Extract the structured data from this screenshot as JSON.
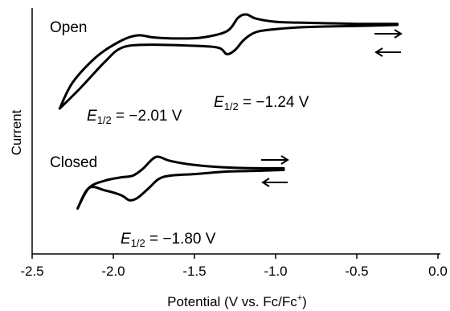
{
  "chart_data": {
    "type": "line",
    "xlabel": "Potential (V vs. Fc/Fc⁺)",
    "xlabel_main": "Potential (V vs. Fc/Fc",
    "xlabel_sup": "+",
    "xlabel_end": ")",
    "ylabel": "Current",
    "xlim": [
      -2.5,
      0.0
    ],
    "xticks": [
      "-2.5",
      "-2.0",
      "-1.5",
      "-1.0",
      "-0.5",
      "0.0"
    ],
    "grid": false,
    "series": [
      {
        "name": "Open",
        "e_half_label": "E1/2 = −2.01 V",
        "e_half_label2": "E1/2 = −1.24 V",
        "forward_x": [
          -0.25,
          -0.5,
          -0.8,
          -1.0,
          -1.1,
          -1.15,
          -1.2,
          -1.25,
          -1.3,
          -1.35,
          -1.5,
          -1.8,
          -1.95,
          -2.05,
          -2.2,
          -2.33
        ],
        "forward_y": [
          0.9,
          0.89,
          0.88,
          0.86,
          0.84,
          0.81,
          0.75,
          0.66,
          0.62,
          0.68,
          0.7,
          0.71,
          0.68,
          0.55,
          0.3,
          0.1
        ],
        "reverse_x": [
          -2.33,
          -2.25,
          -2.1,
          -1.95,
          -1.85,
          -1.75,
          -1.6,
          -1.45,
          -1.3,
          -1.23,
          -1.18,
          -1.12,
          -1.0,
          -0.8,
          -0.5,
          -0.25
        ],
        "reverse_y": [
          0.1,
          0.35,
          0.6,
          0.75,
          0.8,
          0.78,
          0.77,
          0.78,
          0.84,
          0.97,
          1.0,
          0.96,
          0.93,
          0.92,
          0.91,
          0.91
        ]
      },
      {
        "name": "Closed",
        "e_half_label": "E1/2 = −1.80 V",
        "forward_x": [
          -0.95,
          -1.1,
          -1.3,
          -1.5,
          -1.65,
          -1.72,
          -1.78,
          -1.85,
          -1.9,
          -1.95,
          -2.05,
          -2.15,
          -2.22
        ],
        "forward_y": [
          0.77,
          0.76,
          0.75,
          0.72,
          0.7,
          0.66,
          0.55,
          0.43,
          0.4,
          0.46,
          0.52,
          0.55,
          0.3
        ],
        "reverse_x": [
          -2.22,
          -2.15,
          -2.05,
          -1.95,
          -1.88,
          -1.82,
          -1.76,
          -1.72,
          -1.65,
          -1.5,
          -1.3,
          -1.1,
          -0.95
        ],
        "reverse_y": [
          0.3,
          0.55,
          0.64,
          0.68,
          0.7,
          0.78,
          0.9,
          0.93,
          0.88,
          0.83,
          0.8,
          0.79,
          0.79
        ]
      }
    ],
    "annotations": {
      "open_label": "Open",
      "closed_label": "Closed",
      "e_sym": "E",
      "e_sub": "1/2",
      "open_e1_value": " = −2.01 V",
      "open_e2_value": " = −1.24 V",
      "closed_e_value": " = −1.80 V"
    }
  }
}
